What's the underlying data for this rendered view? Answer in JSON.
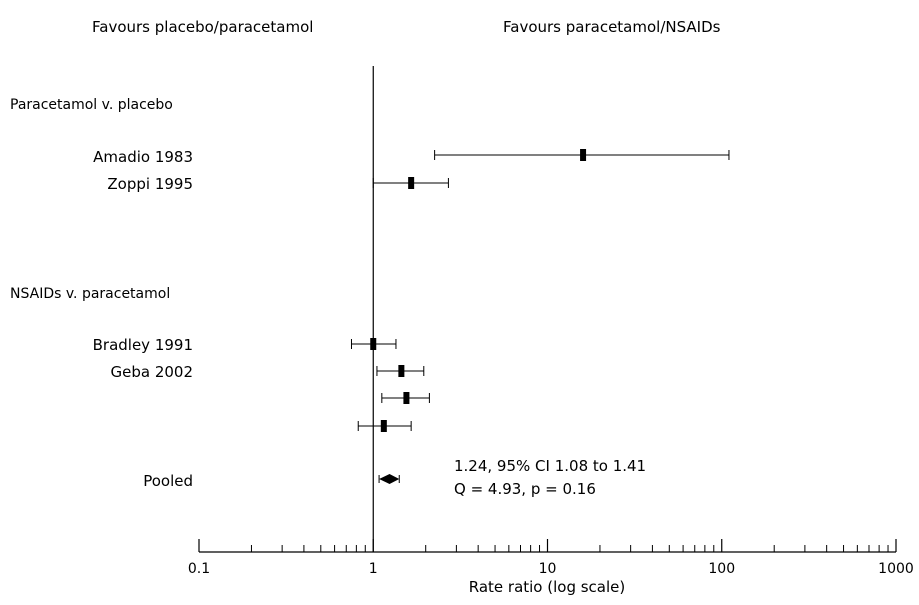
{
  "chart_data": {
    "type": "forest",
    "xlabel": "Rate ratio (log scale)",
    "x_scale": "log",
    "xlim": [
      0.1,
      1000
    ],
    "null_value": 1,
    "grid": false,
    "x_ticks": [
      {
        "value": 0.1,
        "label": "0.1"
      },
      {
        "value": 1,
        "label": "1"
      },
      {
        "value": 10,
        "label": "10"
      },
      {
        "value": 100,
        "label": "100"
      },
      {
        "value": 1000,
        "label": "1000"
      }
    ],
    "direction_labels": {
      "left": "Favours placebo/paracetamol",
      "right": "Favours paracetamol/NSAIDs"
    },
    "groups": [
      {
        "label": "Paracetamol v. placebo",
        "studies": [
          {
            "label": "Amadio 1983",
            "estimate": 16,
            "lower": 2.25,
            "upper": 110
          },
          {
            "label": "Zoppi 1995",
            "estimate": 1.65,
            "lower": 1.0,
            "upper": 2.7
          }
        ]
      },
      {
        "label": "NSAIDs v. paracetamol",
        "studies": [
          {
            "label": "Bradley 1991",
            "estimate": 1.0,
            "lower": 0.75,
            "upper": 1.35
          },
          {
            "label": "Geba 2002",
            "estimate": 1.45,
            "lower": 1.05,
            "upper": 1.95
          },
          {
            "label": "",
            "estimate": 1.55,
            "lower": 1.12,
            "upper": 2.1
          },
          {
            "label": "",
            "estimate": 1.15,
            "lower": 0.82,
            "upper": 1.65
          }
        ]
      }
    ],
    "pooled": {
      "label": "Pooled",
      "estimate": 1.24,
      "lower": 1.08,
      "upper": 1.41,
      "annotation_line1": "1.24, 95% CI 1.08 to 1.41",
      "annotation_line2": "Q = 4.93, p = 0.16"
    }
  }
}
